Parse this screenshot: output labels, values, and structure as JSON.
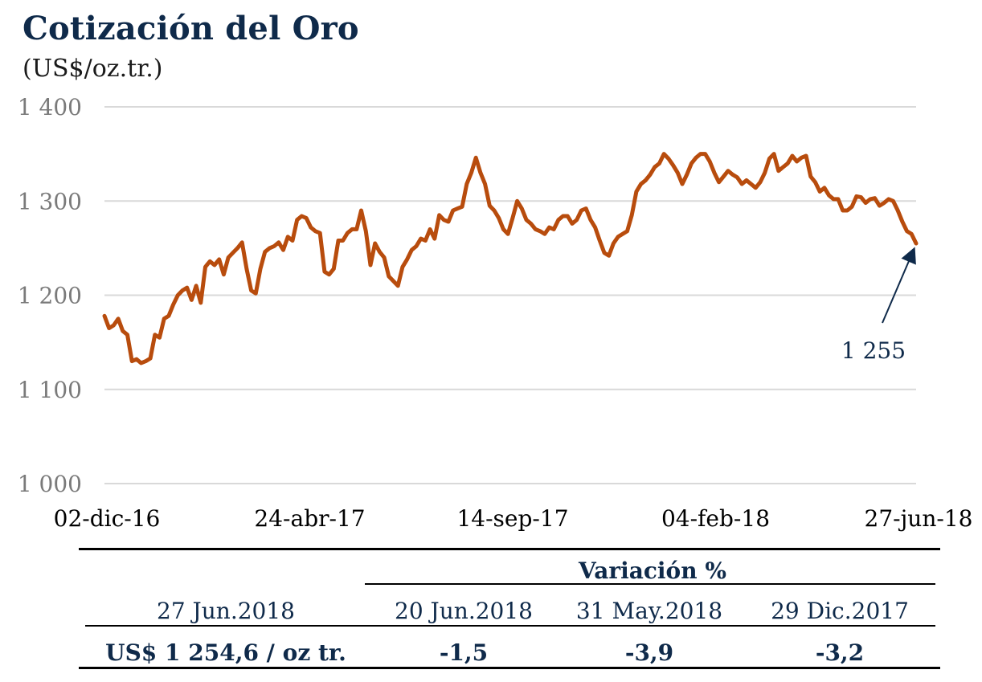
{
  "title": "Cotización del Oro",
  "subtitle": "(US$/oz.tr.)",
  "chart_data": {
    "type": "line",
    "title": "Cotización del Oro",
    "subtitle": "(US$/oz.tr.)",
    "ylim": [
      1000,
      1400
    ],
    "yticks": [
      "1 000",
      "1 100",
      "1 200",
      "1 300",
      "1 400"
    ],
    "ytick_values": [
      1000,
      1100,
      1200,
      1300,
      1400
    ],
    "xtick_labels": [
      "02-dic-16",
      "24-abr-17",
      "14-sep-17",
      "04-feb-18",
      "27-jun-18"
    ],
    "grid": "horizontal",
    "line_color": "#b84c0d",
    "series": [
      {
        "values": [
          1178,
          1165,
          1168,
          1175,
          1162,
          1158,
          1130,
          1132,
          1128,
          1130,
          1133,
          1158,
          1155,
          1175,
          1178,
          1190,
          1200,
          1205,
          1208,
          1195,
          1210,
          1192,
          1230,
          1236,
          1232,
          1238,
          1222,
          1240,
          1245,
          1250,
          1256,
          1228,
          1205,
          1202,
          1228,
          1246,
          1250,
          1252,
          1256,
          1248,
          1262,
          1258,
          1280,
          1284,
          1282,
          1272,
          1268,
          1266,
          1225,
          1222,
          1228,
          1258,
          1258,
          1266,
          1270,
          1270,
          1290,
          1268,
          1232,
          1255,
          1246,
          1240,
          1220,
          1215,
          1210,
          1230,
          1238,
          1248,
          1252,
          1260,
          1258,
          1270,
          1260,
          1285,
          1280,
          1278,
          1290,
          1292,
          1294,
          1318,
          1330,
          1346,
          1330,
          1318,
          1295,
          1290,
          1282,
          1270,
          1265,
          1282,
          1300,
          1292,
          1280,
          1276,
          1270,
          1268,
          1265,
          1272,
          1270,
          1280,
          1284,
          1284,
          1276,
          1280,
          1290,
          1292,
          1280,
          1272,
          1258,
          1245,
          1242,
          1255,
          1262,
          1265,
          1268,
          1285,
          1310,
          1318,
          1322,
          1328,
          1336,
          1340,
          1350,
          1345,
          1338,
          1330,
          1318,
          1328,
          1340,
          1346,
          1350,
          1350,
          1342,
          1330,
          1320,
          1326,
          1332,
          1328,
          1325,
          1318,
          1322,
          1318,
          1314,
          1320,
          1330,
          1345,
          1350,
          1332,
          1336,
          1340,
          1348,
          1342,
          1346,
          1348,
          1326,
          1320,
          1310,
          1314,
          1306,
          1302,
          1302,
          1290,
          1290,
          1294,
          1305,
          1304,
          1298,
          1302,
          1303,
          1295,
          1298,
          1302,
          1300,
          1290,
          1278,
          1268,
          1265,
          1255
        ]
      }
    ],
    "annotation": {
      "text": "1 255",
      "value": 1255
    }
  },
  "table": {
    "header_variation": "Variación %",
    "date_label": "27 Jun.2018",
    "col1_header": "20 Jun.2018",
    "col2_header": "31 May.2018",
    "col3_header": "29 Dic.2017",
    "price": "US$ 1 254,6 / oz tr.",
    "col1_value": "-1,5",
    "col2_value": "-3,9",
    "col3_value": "-3,2"
  }
}
